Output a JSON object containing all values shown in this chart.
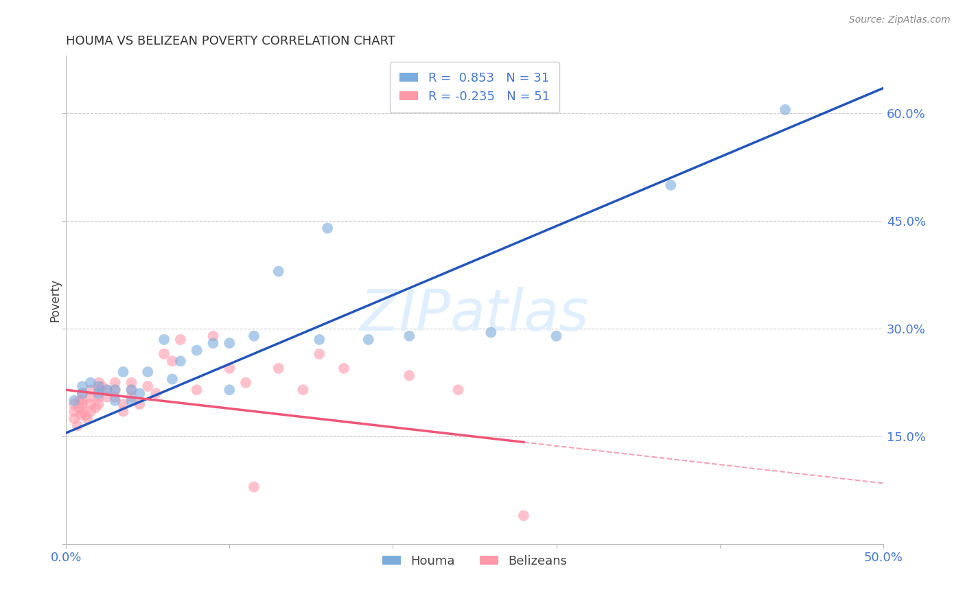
{
  "title": "HOUMA VS BELIZEAN POVERTY CORRELATION CHART",
  "source": "Source: ZipAtlas.com",
  "tick_color": "#4477CC",
  "ylabel": "Poverty",
  "xlim": [
    0.0,
    0.5
  ],
  "ylim": [
    0.0,
    0.68
  ],
  "houma_R": 0.853,
  "houma_N": 31,
  "belizean_R": -0.235,
  "belizean_N": 51,
  "houma_color": "#7AADDD",
  "belizean_color": "#FF99AA",
  "houma_line_color": "#2255BB",
  "belizean_line_color": "#EE5577",
  "grid_color": "#CCCCCC",
  "background_color": "#FFFFFF",
  "houma_line_x0": 0.0,
  "houma_line_y0": 0.155,
  "houma_line_x1": 0.5,
  "houma_line_y1": 0.635,
  "belizean_line_x0": 0.0,
  "belizean_line_y0": 0.215,
  "belizean_line_solid_x1": 0.28,
  "belizean_line_x1": 0.5,
  "belizean_line_y1": 0.085,
  "houma_x": [
    0.005,
    0.01,
    0.01,
    0.015,
    0.02,
    0.02,
    0.025,
    0.03,
    0.03,
    0.035,
    0.04,
    0.04,
    0.045,
    0.05,
    0.06,
    0.065,
    0.07,
    0.08,
    0.09,
    0.1,
    0.1,
    0.115,
    0.13,
    0.155,
    0.16,
    0.185,
    0.21,
    0.26,
    0.3,
    0.37,
    0.44
  ],
  "houma_y": [
    0.2,
    0.22,
    0.21,
    0.225,
    0.21,
    0.22,
    0.215,
    0.2,
    0.215,
    0.24,
    0.2,
    0.215,
    0.21,
    0.24,
    0.285,
    0.23,
    0.255,
    0.27,
    0.28,
    0.215,
    0.28,
    0.29,
    0.38,
    0.285,
    0.44,
    0.285,
    0.29,
    0.295,
    0.29,
    0.5,
    0.605
  ],
  "belizean_x": [
    0.005,
    0.005,
    0.005,
    0.007,
    0.008,
    0.008,
    0.009,
    0.01,
    0.01,
    0.01,
    0.01,
    0.012,
    0.013,
    0.015,
    0.015,
    0.015,
    0.015,
    0.018,
    0.02,
    0.02,
    0.02,
    0.02,
    0.022,
    0.025,
    0.025,
    0.03,
    0.03,
    0.03,
    0.035,
    0.035,
    0.04,
    0.04,
    0.04,
    0.045,
    0.05,
    0.055,
    0.06,
    0.065,
    0.07,
    0.08,
    0.09,
    0.1,
    0.11,
    0.115,
    0.13,
    0.145,
    0.155,
    0.17,
    0.21,
    0.24,
    0.28
  ],
  "belizean_y": [
    0.195,
    0.185,
    0.175,
    0.165,
    0.2,
    0.19,
    0.18,
    0.21,
    0.2,
    0.195,
    0.185,
    0.18,
    0.175,
    0.215,
    0.205,
    0.195,
    0.185,
    0.19,
    0.225,
    0.215,
    0.205,
    0.195,
    0.22,
    0.215,
    0.205,
    0.225,
    0.215,
    0.205,
    0.195,
    0.185,
    0.225,
    0.215,
    0.205,
    0.195,
    0.22,
    0.21,
    0.265,
    0.255,
    0.285,
    0.215,
    0.29,
    0.245,
    0.225,
    0.08,
    0.245,
    0.215,
    0.265,
    0.245,
    0.235,
    0.215,
    0.04
  ]
}
